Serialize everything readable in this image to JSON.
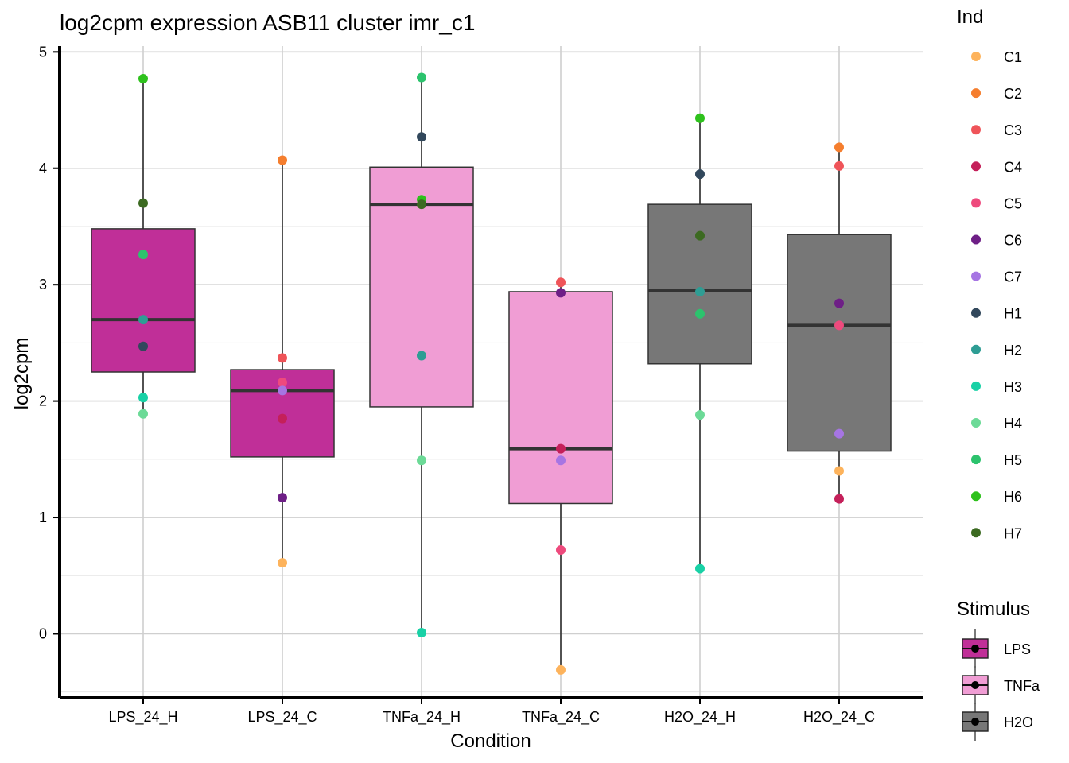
{
  "chart_data": {
    "type": "box",
    "title": "log2cpm expression ASB11 cluster imr_c1",
    "xlabel": "Condition",
    "ylabel": "log2cpm",
    "ylim": [
      -0.55,
      5.05
    ],
    "yticks": [
      0,
      1,
      2,
      3,
      4,
      5
    ],
    "categories": [
      "LPS_24_H",
      "LPS_24_C",
      "TNFa_24_H",
      "TNFa_24_C",
      "H2O_24_H",
      "H2O_24_C"
    ],
    "boxes": [
      {
        "category": "LPS_24_H",
        "stimulus": "LPS",
        "q1": 2.25,
        "median": 2.7,
        "q3": 3.48,
        "whisker_low": 1.89,
        "whisker_high": 4.77
      },
      {
        "category": "LPS_24_C",
        "stimulus": "LPS",
        "q1": 1.52,
        "median": 2.09,
        "q3": 2.27,
        "whisker_low": 0.61,
        "whisker_high": 4.07
      },
      {
        "category": "TNFa_24_H",
        "stimulus": "TNFa",
        "q1": 1.95,
        "median": 3.69,
        "q3": 4.01,
        "whisker_low": 0.01,
        "whisker_high": 4.78
      },
      {
        "category": "TNFa_24_C",
        "stimulus": "TNFa",
        "q1": 1.12,
        "median": 1.59,
        "q3": 2.94,
        "whisker_low": -0.31,
        "whisker_high": 3.02
      },
      {
        "category": "H2O_24_H",
        "stimulus": "H2O",
        "q1": 2.32,
        "median": 2.95,
        "q3": 3.69,
        "whisker_low": 0.56,
        "whisker_high": 4.43
      },
      {
        "category": "H2O_24_C",
        "stimulus": "H2O",
        "q1": 1.57,
        "median": 2.65,
        "q3": 3.43,
        "whisker_low": 1.16,
        "whisker_high": 4.18
      }
    ],
    "points": [
      {
        "category": "LPS_24_H",
        "ind": "H6",
        "y": 4.77
      },
      {
        "category": "LPS_24_H",
        "ind": "H7",
        "y": 3.7
      },
      {
        "category": "LPS_24_H",
        "ind": "H5",
        "y": 3.26
      },
      {
        "category": "LPS_24_H",
        "ind": "H2",
        "y": 2.7
      },
      {
        "category": "LPS_24_H",
        "ind": "H1",
        "y": 2.47
      },
      {
        "category": "LPS_24_H",
        "ind": "H3",
        "y": 2.03
      },
      {
        "category": "LPS_24_H",
        "ind": "H4",
        "y": 1.89
      },
      {
        "category": "LPS_24_C",
        "ind": "C2",
        "y": 4.07
      },
      {
        "category": "LPS_24_C",
        "ind": "C3",
        "y": 2.37
      },
      {
        "category": "LPS_24_C",
        "ind": "C5",
        "y": 2.16
      },
      {
        "category": "LPS_24_C",
        "ind": "C7",
        "y": 2.09
      },
      {
        "category": "LPS_24_C",
        "ind": "C4",
        "y": 1.85
      },
      {
        "category": "LPS_24_C",
        "ind": "C6",
        "y": 1.17
      },
      {
        "category": "LPS_24_C",
        "ind": "C1",
        "y": 0.61
      },
      {
        "category": "TNFa_24_H",
        "ind": "H5",
        "y": 4.78
      },
      {
        "category": "TNFa_24_H",
        "ind": "H1",
        "y": 4.27
      },
      {
        "category": "TNFa_24_H",
        "ind": "H6",
        "y": 3.73
      },
      {
        "category": "TNFa_24_H",
        "ind": "H7",
        "y": 3.69
      },
      {
        "category": "TNFa_24_H",
        "ind": "H2",
        "y": 2.39
      },
      {
        "category": "TNFa_24_H",
        "ind": "H4",
        "y": 1.49
      },
      {
        "category": "TNFa_24_H",
        "ind": "H3",
        "y": 0.01
      },
      {
        "category": "TNFa_24_C",
        "ind": "C3",
        "y": 3.02
      },
      {
        "category": "TNFa_24_C",
        "ind": "C6",
        "y": 2.93
      },
      {
        "category": "TNFa_24_C",
        "ind": "C4",
        "y": 1.59
      },
      {
        "category": "TNFa_24_C",
        "ind": "C7",
        "y": 1.49
      },
      {
        "category": "TNFa_24_C",
        "ind": "C5",
        "y": 0.72
      },
      {
        "category": "TNFa_24_C",
        "ind": "C1",
        "y": -0.31
      },
      {
        "category": "H2O_24_H",
        "ind": "H6",
        "y": 4.43
      },
      {
        "category": "H2O_24_H",
        "ind": "H1",
        "y": 3.95
      },
      {
        "category": "H2O_24_H",
        "ind": "H7",
        "y": 3.42
      },
      {
        "category": "H2O_24_H",
        "ind": "H2",
        "y": 2.94
      },
      {
        "category": "H2O_24_H",
        "ind": "H5",
        "y": 2.75
      },
      {
        "category": "H2O_24_H",
        "ind": "H4",
        "y": 1.88
      },
      {
        "category": "H2O_24_H",
        "ind": "H3",
        "y": 0.56
      },
      {
        "category": "H2O_24_C",
        "ind": "C2",
        "y": 4.18
      },
      {
        "category": "H2O_24_C",
        "ind": "C3",
        "y": 4.02
      },
      {
        "category": "H2O_24_C",
        "ind": "C6",
        "y": 2.84
      },
      {
        "category": "H2O_24_C",
        "ind": "C5",
        "y": 2.65
      },
      {
        "category": "H2O_24_C",
        "ind": "C7",
        "y": 1.72
      },
      {
        "category": "H2O_24_C",
        "ind": "C1",
        "y": 1.4
      },
      {
        "category": "H2O_24_C",
        "ind": "C4",
        "y": 1.16
      }
    ],
    "legend_ind": {
      "title": "Ind",
      "entries": [
        {
          "label": "C1",
          "color": "#FDB35C"
        },
        {
          "label": "C2",
          "color": "#F57E2E"
        },
        {
          "label": "C3",
          "color": "#EF5459"
        },
        {
          "label": "C4",
          "color": "#C4205A"
        },
        {
          "label": "C5",
          "color": "#EE4A7D"
        },
        {
          "label": "C6",
          "color": "#6E1F86"
        },
        {
          "label": "C7",
          "color": "#A675E3"
        },
        {
          "label": "H1",
          "color": "#32485C"
        },
        {
          "label": "H2",
          "color": "#2E9D94"
        },
        {
          "label": "H3",
          "color": "#19D1A6"
        },
        {
          "label": "H4",
          "color": "#6CDA97"
        },
        {
          "label": "H5",
          "color": "#2CC36D"
        },
        {
          "label": "H6",
          "color": "#2EC11C"
        },
        {
          "label": "H7",
          "color": "#3C6A21"
        }
      ]
    },
    "legend_stimulus": {
      "title": "Stimulus",
      "entries": [
        {
          "label": "LPS",
          "color": "#C02F98"
        },
        {
          "label": "TNFa",
          "color": "#F09DD4"
        },
        {
          "label": "H2O",
          "color": "#777777"
        }
      ]
    }
  }
}
